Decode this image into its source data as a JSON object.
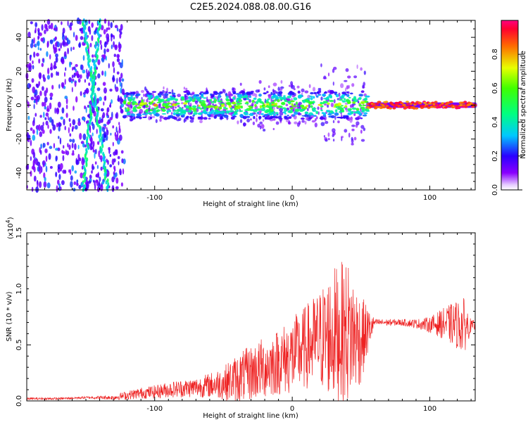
{
  "title": "C2E5.2024.088.08.00.G16",
  "colors": {
    "snr_line": "#ee2222",
    "spectrogram_low": "#7700ff",
    "spectrogram_high": "#ff0000"
  },
  "chart_data": [
    {
      "type": "heatmap",
      "panel": "spectrogram",
      "xlabel": "Height of straight line (km)",
      "ylabel": "Frequency (Hz)",
      "xlim": [
        -193,
        133
      ],
      "ylim": [
        -50,
        50
      ],
      "xticks": [
        -100,
        0,
        100
      ],
      "yticks": [
        -40,
        -20,
        0,
        20,
        40
      ],
      "grid": false,
      "colorbar": {
        "label": "Normalized spectral amplitude",
        "range": [
          0.0,
          1.0
        ],
        "ticks": [
          0.0,
          0.2,
          0.4,
          0.6,
          0.8
        ],
        "tick_labels": [
          "0.0",
          "0.2",
          "0.4",
          "0.6",
          "0.8"
        ],
        "colormap": "rainbow"
      },
      "features": [
        {
          "x_range": [
            -193,
            -122
          ],
          "freq_range": [
            -50,
            50
          ],
          "amplitude": [
            0.1,
            0.3
          ],
          "pattern": "scattered noise"
        },
        {
          "x_range": [
            -148,
            -135
          ],
          "freq_range": [
            -50,
            50
          ],
          "amplitude": [
            0.3,
            0.5
          ],
          "pattern": "diagonal streaks"
        },
        {
          "x_range": [
            -122,
            55
          ],
          "freq_range": [
            -8,
            8
          ],
          "amplitude": [
            0.3,
            0.7
          ],
          "pattern": "signal band"
        },
        {
          "x_range": [
            55,
            133
          ],
          "freq_range": [
            -2,
            2
          ],
          "amplitude": [
            0.8,
            1.0
          ],
          "pattern": "narrow tone"
        }
      ]
    },
    {
      "type": "line",
      "panel": "snr",
      "xlabel": "Height of straight line (km)",
      "ylabel": "SNR (10 * v/v)",
      "yscale_label": "(x10",
      "yscale_exp": "4",
      "yscale_close": ")",
      "xlim": [
        -193,
        133
      ],
      "ylim": [
        0,
        1.5
      ],
      "xticks": [
        -100,
        0,
        100
      ],
      "yticks": [
        0.0,
        0.5,
        1.0,
        1.5
      ],
      "ytick_labels": [
        "0.0",
        "0.5",
        "1.0",
        "1.5"
      ],
      "grid": false,
      "series": [
        {
          "x": [
            -190,
            -170,
            -150,
            -130,
            -120,
            -110,
            -100,
            -90,
            -80,
            -70,
            -60,
            -50,
            -40,
            -30,
            -20,
            -10,
            0,
            10,
            20,
            30,
            40,
            50,
            60,
            70,
            80,
            90,
            100,
            110,
            120,
            125,
            130
          ],
          "y": [
            0.02,
            0.02,
            0.03,
            0.03,
            0.05,
            0.07,
            0.08,
            0.1,
            0.11,
            0.12,
            0.14,
            0.16,
            0.2,
            0.25,
            0.3,
            0.35,
            0.4,
            0.48,
            0.55,
            0.6,
            0.62,
            0.55,
            0.7,
            0.7,
            0.7,
            0.69,
            0.68,
            0.69,
            0.68,
            0.67,
            0.67
          ],
          "spread": [
            0.01,
            0.01,
            0.01,
            0.02,
            0.04,
            0.05,
            0.06,
            0.07,
            0.08,
            0.09,
            0.11,
            0.15,
            0.22,
            0.25,
            0.28,
            0.3,
            0.35,
            0.38,
            0.45,
            0.6,
            0.65,
            0.4,
            0.03,
            0.03,
            0.03,
            0.04,
            0.07,
            0.14,
            0.22,
            0.25,
            0.05
          ]
        }
      ]
    }
  ]
}
